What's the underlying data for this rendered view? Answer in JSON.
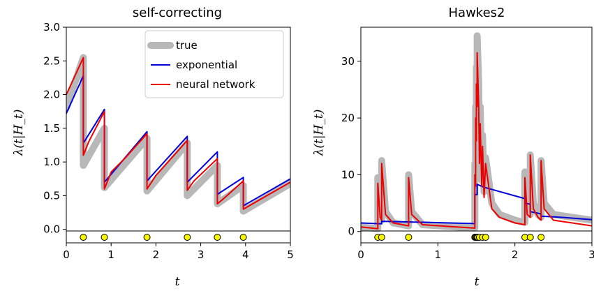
{
  "chart_data": [
    {
      "type": "line",
      "title": "self-correcting",
      "xlabel": "t",
      "ylabel": "λ(t|H_t)",
      "xlim": [
        0,
        5
      ],
      "ylim": [
        -0.2,
        3.0
      ],
      "xticks": [
        "0",
        "1",
        "2",
        "3",
        "4",
        "5"
      ],
      "yticks": [
        "0.0",
        "0.5",
        "1.0",
        "1.5",
        "2.0",
        "2.5",
        "3.0"
      ],
      "grid": false,
      "legend": {
        "placement": "top-right",
        "entries": [
          "true",
          "exponential",
          "neural network"
        ]
      },
      "events": [
        0.38,
        0.85,
        1.8,
        2.7,
        3.37,
        3.95
      ],
      "series": [
        {
          "name": "true",
          "color": "#b8b8b8",
          "points": [
            [
              0,
              1.8
            ],
            [
              0.38,
              2.55
            ],
            [
              0.38,
              0.95
            ],
            [
              0.85,
              1.5
            ],
            [
              0.85,
              0.62
            ],
            [
              1.8,
              1.35
            ],
            [
              1.8,
              0.57
            ],
            [
              2.7,
              1.28
            ],
            [
              2.7,
              0.5
            ],
            [
              3.37,
              0.95
            ],
            [
              3.37,
              0.38
            ],
            [
              3.95,
              0.65
            ],
            [
              3.95,
              0.27
            ],
            [
              5,
              0.68
            ]
          ]
        },
        {
          "name": "exponential",
          "color": "#0000dd",
          "points": [
            [
              0,
              1.72
            ],
            [
              0.38,
              2.28
            ],
            [
              0.38,
              1.28
            ],
            [
              0.85,
              1.78
            ],
            [
              0.85,
              0.7
            ],
            [
              1.8,
              1.45
            ],
            [
              1.8,
              0.72
            ],
            [
              2.7,
              1.38
            ],
            [
              2.7,
              0.7
            ],
            [
              3.37,
              1.15
            ],
            [
              3.37,
              0.52
            ],
            [
              3.95,
              0.77
            ],
            [
              3.95,
              0.35
            ],
            [
              5,
              0.75
            ]
          ]
        },
        {
          "name": "neural network",
          "color": "#ee0000",
          "points": [
            [
              0,
              2.0
            ],
            [
              0.38,
              2.55
            ],
            [
              0.38,
              1.1
            ],
            [
              0.5,
              1.3
            ],
            [
              0.85,
              1.75
            ],
            [
              0.85,
              0.6
            ],
            [
              1.0,
              0.85
            ],
            [
              1.3,
              1.05
            ],
            [
              1.8,
              1.42
            ],
            [
              1.8,
              0.6
            ],
            [
              2.0,
              0.8
            ],
            [
              2.7,
              1.32
            ],
            [
              2.7,
              0.58
            ],
            [
              2.85,
              0.72
            ],
            [
              3.37,
              1.05
            ],
            [
              3.37,
              0.38
            ],
            [
              3.5,
              0.45
            ],
            [
              3.95,
              0.72
            ],
            [
              3.95,
              0.3
            ],
            [
              5,
              0.7
            ]
          ]
        }
      ]
    },
    {
      "type": "line",
      "title": "Hawkes2",
      "xlabel": "t",
      "ylabel": "λ(t|H_t)",
      "xlim": [
        0,
        3
      ],
      "ylim": [
        -2,
        36
      ],
      "xticks": [
        "0",
        "1",
        "2",
        "3"
      ],
      "yticks": [
        "0",
        "10",
        "20",
        "30"
      ],
      "grid": false,
      "events": [
        0.22,
        0.27,
        0.62,
        1.48,
        1.49,
        1.5,
        1.51,
        1.52,
        1.54,
        1.58,
        1.62,
        2.13,
        2.2,
        2.34
      ],
      "series": [
        {
          "name": "true",
          "color": "#b8b8b8",
          "points": [
            [
              0,
              0.8
            ],
            [
              0.22,
              0.5
            ],
            [
              0.22,
              9.5
            ],
            [
              0.25,
              2.5
            ],
            [
              0.27,
              2.0
            ],
            [
              0.27,
              12.5
            ],
            [
              0.32,
              3.5
            ],
            [
              0.42,
              1.5
            ],
            [
              0.62,
              1.0
            ],
            [
              0.62,
              10.0
            ],
            [
              0.66,
              3.5
            ],
            [
              0.8,
              1.2
            ],
            [
              1.48,
              0.6
            ],
            [
              1.48,
              12
            ],
            [
              1.49,
              10
            ],
            [
              1.49,
              22
            ],
            [
              1.5,
              18
            ],
            [
              1.5,
              29
            ],
            [
              1.51,
              26
            ],
            [
              1.51,
              34.5
            ],
            [
              1.53,
              26
            ],
            [
              1.54,
              14
            ],
            [
              1.55,
              22
            ],
            [
              1.57,
              9
            ],
            [
              1.58,
              17
            ],
            [
              1.6,
              7
            ],
            [
              1.62,
              13
            ],
            [
              1.7,
              5
            ],
            [
              1.8,
              3
            ],
            [
              2.0,
              2
            ],
            [
              2.13,
              1.6
            ],
            [
              2.13,
              10.5
            ],
            [
              2.16,
              4
            ],
            [
              2.2,
              3
            ],
            [
              2.2,
              13.5
            ],
            [
              2.24,
              5
            ],
            [
              2.3,
              3
            ],
            [
              2.34,
              2.5
            ],
            [
              2.34,
              12.5
            ],
            [
              2.38,
              5
            ],
            [
              2.5,
              3
            ],
            [
              3,
              2
            ]
          ]
        },
        {
          "name": "exponential",
          "color": "#0000dd",
          "points": [
            [
              0,
              1.5
            ],
            [
              0.27,
              1.35
            ],
            [
              0.27,
              1.8
            ],
            [
              1.48,
              1.4
            ],
            [
              1.48,
              6.5
            ],
            [
              1.51,
              6.5
            ],
            [
              1.51,
              8.3
            ],
            [
              1.6,
              7.8
            ],
            [
              2.13,
              5.8
            ],
            [
              2.13,
              5.0
            ],
            [
              2.2,
              4.8
            ],
            [
              2.2,
              3.5
            ],
            [
              2.34,
              3.1
            ],
            [
              2.34,
              2.7
            ],
            [
              2.6,
              2.5
            ],
            [
              3,
              2.1
            ]
          ]
        },
        {
          "name": "neural network",
          "color": "#ee0000",
          "points": [
            [
              0,
              0.8
            ],
            [
              0.22,
              0.5
            ],
            [
              0.22,
              8.5
            ],
            [
              0.25,
              2.5
            ],
            [
              0.27,
              2.0
            ],
            [
              0.27,
              12
            ],
            [
              0.32,
              3
            ],
            [
              0.42,
              1.5
            ],
            [
              0.62,
              1.0
            ],
            [
              0.62,
              9.5
            ],
            [
              0.66,
              3
            ],
            [
              0.8,
              1.2
            ],
            [
              1.48,
              0.6
            ],
            [
              1.48,
              10
            ],
            [
              1.49,
              8
            ],
            [
              1.49,
              20
            ],
            [
              1.5,
              16
            ],
            [
              1.5,
              26
            ],
            [
              1.51,
              22
            ],
            [
              1.51,
              31.5
            ],
            [
              1.53,
              22
            ],
            [
              1.54,
              12
            ],
            [
              1.55,
              19
            ],
            [
              1.57,
              8
            ],
            [
              1.58,
              15
            ],
            [
              1.6,
              6
            ],
            [
              1.62,
              12
            ],
            [
              1.7,
              4
            ],
            [
              1.8,
              2.5
            ],
            [
              2.0,
              1.5
            ],
            [
              2.13,
              1.2
            ],
            [
              2.13,
              9.5
            ],
            [
              2.16,
              3
            ],
            [
              2.2,
              2.5
            ],
            [
              2.2,
              13.5
            ],
            [
              2.24,
              4
            ],
            [
              2.3,
              2.5
            ],
            [
              2.34,
              2.0
            ],
            [
              2.34,
              12.5
            ],
            [
              2.38,
              4
            ],
            [
              2.5,
              2
            ],
            [
              3,
              1
            ]
          ]
        }
      ]
    }
  ]
}
